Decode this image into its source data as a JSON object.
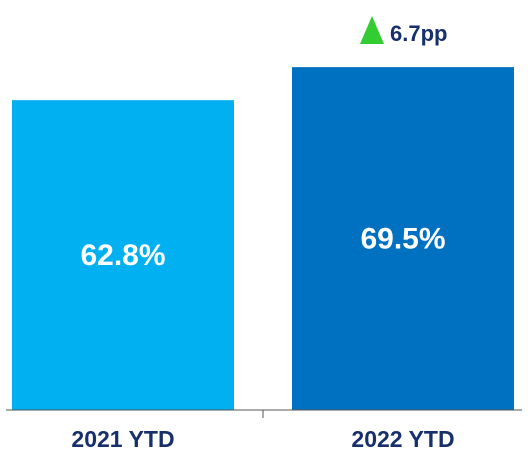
{
  "chart_data": {
    "type": "bar",
    "categories": [
      "2021 YTD",
      "2022 YTD"
    ],
    "values": [
      62.8,
      69.5
    ],
    "value_labels": [
      "62.8%",
      "69.5%"
    ],
    "colors": [
      "#00b0f0",
      "#0070c0"
    ],
    "ylim": [
      0,
      75
    ],
    "grid": false,
    "annotation": {
      "text": "6.7pp",
      "icon": "up-triangle-icon",
      "color": "#33cc33"
    }
  }
}
